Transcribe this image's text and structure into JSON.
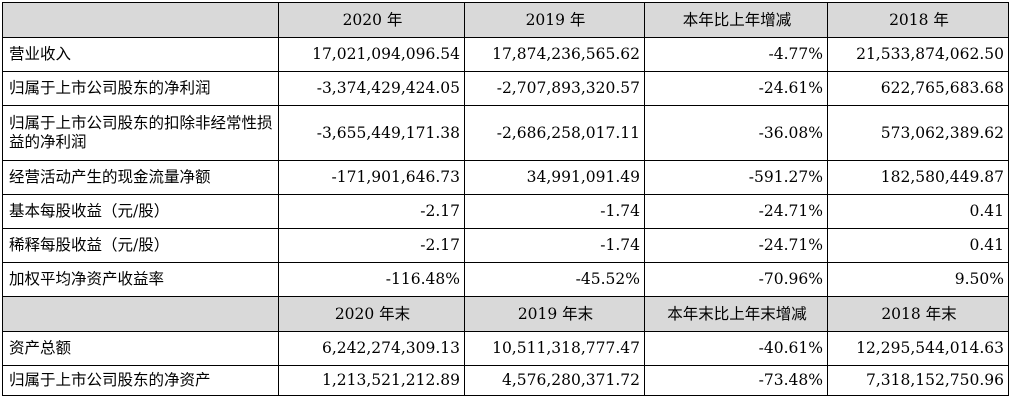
{
  "table": {
    "header1": [
      "2020 年",
      "2019 年",
      "本年比上年增减",
      "2018 年"
    ],
    "section1_rows": [
      {
        "label": "营业收入",
        "v2020": "17,021,094,096.54",
        "v2019": "17,874,236,565.62",
        "change": "-4.77%",
        "v2018": "21,533,874,062.50"
      },
      {
        "label": "归属于上市公司股东的净利润",
        "v2020": "-3,374,429,424.05",
        "v2019": "-2,707,893,320.57",
        "change": "-24.61%",
        "v2018": "622,765,683.68"
      },
      {
        "label": "归属于上市公司股东的扣除非经常性损益的净利润",
        "v2020": "-3,655,449,171.38",
        "v2019": "-2,686,258,017.11",
        "change": "-36.08%",
        "v2018": "573,062,389.62"
      },
      {
        "label": "经营活动产生的现金流量净额",
        "v2020": "-171,901,646.73",
        "v2019": "34,991,091.49",
        "change": "-591.27%",
        "v2018": "182,580,449.87"
      },
      {
        "label": "基本每股收益（元/股）",
        "v2020": "-2.17",
        "v2019": "-1.74",
        "change": "-24.71%",
        "v2018": "0.41"
      },
      {
        "label": "稀释每股收益（元/股）",
        "v2020": "-2.17",
        "v2019": "-1.74",
        "change": "-24.71%",
        "v2018": "0.41"
      },
      {
        "label": "加权平均净资产收益率",
        "v2020": "-116.48%",
        "v2019": "-45.52%",
        "change": "-70.96%",
        "v2018": "9.50%"
      }
    ],
    "header2": [
      "2020 年末",
      "2019 年末",
      "本年末比上年末增减",
      "2018 年末"
    ],
    "section2_rows": [
      {
        "label": "资产总额",
        "v2020": "6,242,274,309.13",
        "v2019": "10,511,318,777.47",
        "change": "-40.61%",
        "v2018": "12,295,544,014.63"
      },
      {
        "label": "归属于上市公司股东的净资产",
        "v2020": "1,213,521,212.89",
        "v2019": "4,576,280,371.72",
        "change": "-73.48%",
        "v2018": "7,318,152,750.96"
      }
    ]
  }
}
